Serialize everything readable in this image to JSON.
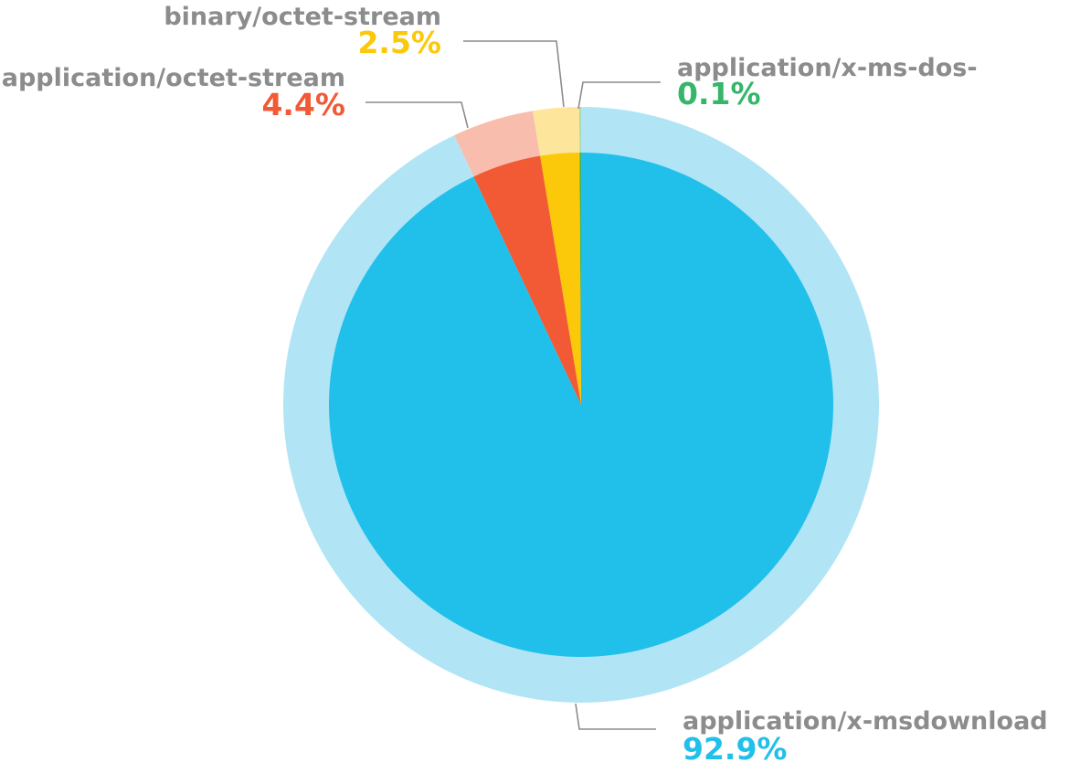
{
  "chart_data": {
    "type": "pie",
    "title": "",
    "categories": [
      "application/x-msdownload",
      "application/octet-stream",
      "binary/octet-stream",
      "application/x-ms-dos-"
    ],
    "values": [
      92.9,
      4.4,
      2.5,
      0.1
    ],
    "value_labels": [
      "92.9%",
      "4.4%",
      "2.5%",
      "0.1%"
    ],
    "unit": "%",
    "colors": [
      "#21c0eb",
      "#f25a35",
      "#fcc80a",
      "#36b66a"
    ],
    "outer_ring_colors": [
      "#b1e5f6",
      "#f8bdad",
      "#fde59b",
      "#a6dbb4"
    ],
    "legend": "none"
  }
}
